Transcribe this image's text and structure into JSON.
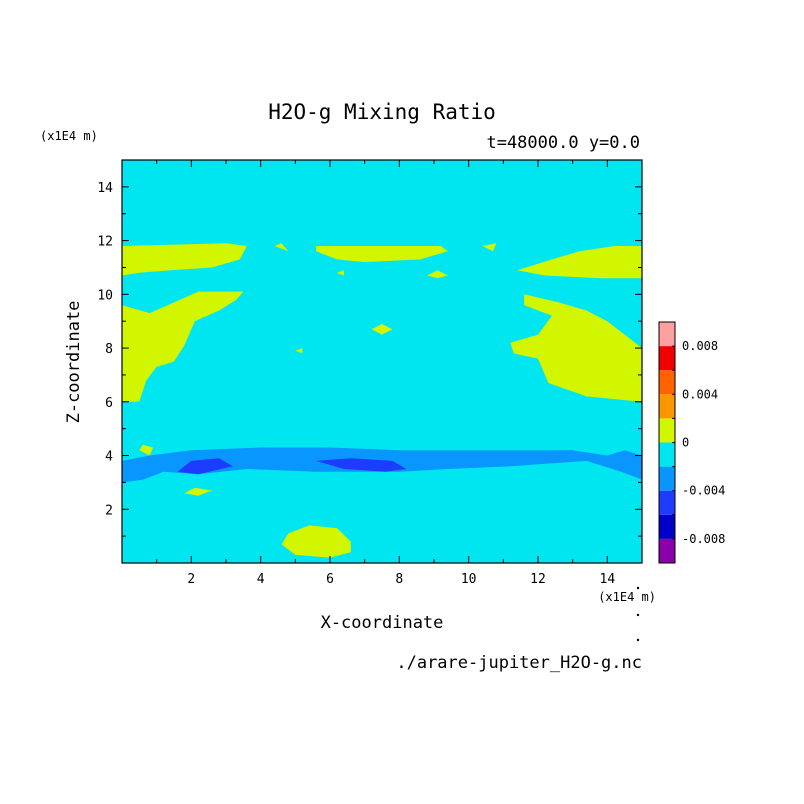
{
  "chart_data": {
    "type": "heatmap",
    "title": "H2O-g Mixing Ratio",
    "subtitle": "t=48000.0 y=0.0",
    "xlabel": "X-coordinate",
    "ylabel": "Z-coordinate",
    "x_unit": "(x1E4 m)",
    "y_unit": "(x1E4 m)",
    "source_file": "./arare-jupiter_H2O-g.nc",
    "xlim": [
      0,
      15
    ],
    "ylim": [
      0,
      15
    ],
    "x_ticks": [
      2,
      4,
      6,
      8,
      10,
      12,
      14
    ],
    "y_ticks": [
      2,
      4,
      6,
      8,
      10,
      12,
      14
    ],
    "background_level": "-0.002 to 0",
    "colorbar": {
      "levels": [
        -0.01,
        -0.008,
        -0.006,
        -0.004,
        -0.002,
        0,
        0.002,
        0.004,
        0.006,
        0.008,
        0.01
      ],
      "tick_labels": [
        "0.008",
        "0.004",
        "0",
        "-0.004",
        "-0.008"
      ],
      "tick_values": [
        0.008,
        0.004,
        0,
        -0.004,
        -0.008
      ],
      "colors": [
        "#8b00a8",
        "#0000c8",
        "#1e3cff",
        "#0a96ff",
        "#00e6f0",
        "#d2f500",
        "#fa9600",
        "#ff6400",
        "#f00000",
        "#ffa0a0"
      ]
    },
    "regions": [
      {
        "name": "positive-band-upper",
        "level": "0 to 0.002",
        "color": "#d2f500",
        "pts": [
          [
            0,
            11.8
          ],
          [
            3,
            11.9
          ],
          [
            3.6,
            11.8
          ],
          [
            3.4,
            11.3
          ],
          [
            2.6,
            11.0
          ],
          [
            1.4,
            10.9
          ],
          [
            0.5,
            10.8
          ],
          [
            0,
            10.7
          ]
        ]
      },
      {
        "name": "positive-band-upper-center",
        "level": "0 to 0.002",
        "color": "#d2f500",
        "pts": [
          [
            5.6,
            11.8
          ],
          [
            9.2,
            11.8
          ],
          [
            9.4,
            11.6
          ],
          [
            8.6,
            11.3
          ],
          [
            7.0,
            11.2
          ],
          [
            6.2,
            11.3
          ],
          [
            5.6,
            11.6
          ]
        ]
      },
      {
        "name": "positive-band-upper-right",
        "level": "0 to 0.002",
        "color": "#d2f500",
        "pts": [
          [
            11.4,
            10.9
          ],
          [
            12.4,
            11.3
          ],
          [
            13.2,
            11.6
          ],
          [
            14.2,
            11.8
          ],
          [
            15,
            11.8
          ],
          [
            15,
            10.6
          ],
          [
            13.8,
            10.6
          ],
          [
            12.2,
            10.7
          ]
        ]
      },
      {
        "name": "positive-region-left",
        "level": "0 to 0.002",
        "color": "#d2f500",
        "pts": [
          [
            0,
            9.6
          ],
          [
            0.8,
            9.3
          ],
          [
            1.5,
            9.7
          ],
          [
            2.2,
            10.1
          ],
          [
            3.5,
            10.1
          ],
          [
            3.3,
            9.8
          ],
          [
            2.8,
            9.4
          ],
          [
            2.1,
            9.0
          ],
          [
            1.8,
            8.1
          ],
          [
            1.5,
            7.5
          ],
          [
            1.0,
            7.3
          ],
          [
            0.7,
            6.8
          ],
          [
            0.5,
            6.0
          ],
          [
            0,
            6.0
          ]
        ]
      },
      {
        "name": "positive-region-right",
        "level": "0 to 0.002",
        "color": "#d2f500",
        "pts": [
          [
            11.6,
            10.0
          ],
          [
            12.6,
            9.7
          ],
          [
            13.4,
            9.4
          ],
          [
            14.0,
            9.0
          ],
          [
            14.6,
            8.4
          ],
          [
            15,
            8.0
          ],
          [
            15,
            6.0
          ],
          [
            13.4,
            6.2
          ],
          [
            12.3,
            6.7
          ],
          [
            12.0,
            7.6
          ],
          [
            11.3,
            7.8
          ],
          [
            11.2,
            8.2
          ],
          [
            12.0,
            8.5
          ],
          [
            12.4,
            9.2
          ],
          [
            11.6,
            9.6
          ]
        ]
      },
      {
        "name": "negative-band-shallow",
        "level": "-0.004 to -0.002",
        "color": "#0a96ff",
        "pts": [
          [
            0,
            3.0
          ],
          [
            0.6,
            3.1
          ],
          [
            1.2,
            3.4
          ],
          [
            2.2,
            3.3
          ],
          [
            3.6,
            3.5
          ],
          [
            5.6,
            3.4
          ],
          [
            8.0,
            3.4
          ],
          [
            9.4,
            3.5
          ],
          [
            11.2,
            3.6
          ],
          [
            13.4,
            3.8
          ],
          [
            14.4,
            3.4
          ],
          [
            15,
            3.1
          ],
          [
            15,
            4.0
          ],
          [
            14.5,
            4.2
          ],
          [
            14.0,
            4.0
          ],
          [
            13.0,
            4.2
          ],
          [
            11.0,
            4.2
          ],
          [
            9.6,
            4.2
          ],
          [
            8.0,
            4.2
          ],
          [
            6.0,
            4.3
          ],
          [
            4.0,
            4.3
          ],
          [
            2.0,
            4.2
          ],
          [
            0.8,
            4.0
          ],
          [
            0,
            3.8
          ]
        ]
      },
      {
        "name": "negative-core-left",
        "level": "-0.006 to -0.004",
        "color": "#1e3cff",
        "pts": [
          [
            1.6,
            3.4
          ],
          [
            2.2,
            3.3
          ],
          [
            3.2,
            3.6
          ],
          [
            2.8,
            3.9
          ],
          [
            2.0,
            3.8
          ]
        ]
      },
      {
        "name": "negative-core-center",
        "level": "-0.006 to -0.004",
        "color": "#1e3cff",
        "pts": [
          [
            5.6,
            3.8
          ],
          [
            6.4,
            3.5
          ],
          [
            7.6,
            3.4
          ],
          [
            8.2,
            3.5
          ],
          [
            7.8,
            3.8
          ],
          [
            6.6,
            3.9
          ]
        ]
      },
      {
        "name": "positive-blob-bottom",
        "level": "0 to 0.002",
        "color": "#d2f500",
        "pts": [
          [
            4.6,
            0.7
          ],
          [
            5.0,
            0.3
          ],
          [
            6.0,
            0.2
          ],
          [
            6.6,
            0.4
          ],
          [
            6.6,
            0.8
          ],
          [
            6.2,
            1.3
          ],
          [
            5.4,
            1.4
          ],
          [
            4.8,
            1.1
          ]
        ]
      },
      {
        "name": "positive-spot-1",
        "level": "0 to 0.002",
        "color": "#d2f500",
        "pts": [
          [
            0.5,
            4.2
          ],
          [
            0.8,
            4.0
          ],
          [
            0.9,
            4.3
          ],
          [
            0.6,
            4.4
          ]
        ]
      },
      {
        "name": "positive-spot-2",
        "level": "0 to 0.002",
        "color": "#d2f500",
        "pts": [
          [
            1.8,
            2.6
          ],
          [
            2.2,
            2.5
          ],
          [
            2.6,
            2.7
          ],
          [
            2.1,
            2.8
          ]
        ]
      },
      {
        "name": "positive-spot-3",
        "level": "0 to 0.002",
        "color": "#d2f500",
        "pts": [
          [
            4.4,
            11.8
          ],
          [
            4.8,
            11.6
          ],
          [
            4.6,
            11.9
          ]
        ]
      },
      {
        "name": "positive-spot-4",
        "level": "0 to 0.002",
        "color": "#d2f500",
        "pts": [
          [
            7.2,
            8.7
          ],
          [
            7.5,
            8.5
          ],
          [
            7.8,
            8.7
          ],
          [
            7.5,
            8.9
          ]
        ]
      },
      {
        "name": "positive-spot-5",
        "level": "0 to 0.002",
        "color": "#d2f500",
        "pts": [
          [
            8.8,
            10.7
          ],
          [
            9.1,
            10.9
          ],
          [
            9.4,
            10.7
          ],
          [
            9.1,
            10.6
          ]
        ]
      },
      {
        "name": "positive-spot-6",
        "level": "0 to 0.002",
        "color": "#d2f500",
        "pts": [
          [
            10.4,
            11.8
          ],
          [
            10.7,
            11.6
          ],
          [
            10.8,
            11.9
          ]
        ]
      },
      {
        "name": "positive-spot-7",
        "level": "0 to 0.002",
        "color": "#d2f500",
        "pts": [
          [
            5.0,
            7.9
          ],
          [
            5.2,
            7.8
          ],
          [
            5.2,
            8.0
          ]
        ]
      },
      {
        "name": "positive-spot-8",
        "level": "0 to 0.002",
        "color": "#d2f500",
        "pts": [
          [
            6.2,
            10.8
          ],
          [
            6.4,
            10.7
          ],
          [
            6.4,
            10.9
          ]
        ]
      }
    ]
  }
}
